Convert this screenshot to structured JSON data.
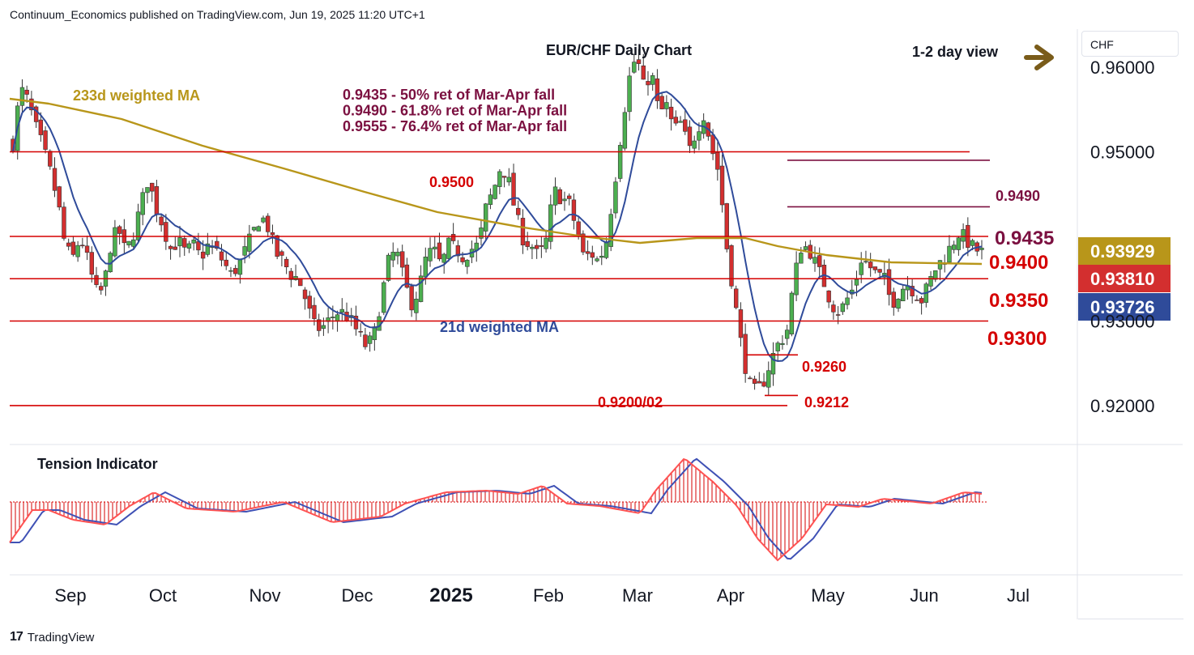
{
  "header": {
    "publisher": "Continuum_Economics published on TradingView.com, Jun 19, 2025 11:20 UTC+1"
  },
  "footer": {
    "brand": "TradingView"
  },
  "price_scale": {
    "unit": "CHF"
  },
  "colors": {
    "up": "#26a69a",
    "down": "#ef5350",
    "candle_up": "#4caf50",
    "candle_down": "#d32f2f",
    "wma233": "#b8961a",
    "wma21": "#2f4b9a",
    "level_red": "#d50000",
    "fib": "#7b1040",
    "arrow": "#7a5c1a",
    "badge_gold": "#b8961a",
    "badge_red": "#d32f2f",
    "badge_blue": "#2f4b9a"
  },
  "chart_data": [
    {
      "type": "candlestick",
      "title": "EUR/CHF Daily Chart",
      "view_label": "1-2 day view",
      "x_tick_labels": [
        "Sep",
        "Oct",
        "Nov",
        "Dec",
        "2025",
        "Feb",
        "Mar",
        "Apr",
        "May",
        "Jun",
        "Jul"
      ],
      "y_tick_labels": [
        "0.96000",
        "0.95000",
        "0.93000",
        "0.92000"
      ],
      "ylim": [
        0.9155,
        0.9645
      ],
      "horizontal_levels": [
        {
          "value": 0.95,
          "label": "0.9500"
        },
        {
          "value": 0.94,
          "label": "0.9400"
        },
        {
          "value": 0.935,
          "label": "0.9350"
        },
        {
          "value": 0.93,
          "label": "0.9300"
        },
        {
          "value": 0.92,
          "label": "0.9200/02"
        }
      ],
      "short_levels": [
        {
          "value": 0.949,
          "label": "0.9490"
        },
        {
          "value": 0.9435,
          "label": "0.9435"
        },
        {
          "value": 0.926,
          "label": "0.9260"
        },
        {
          "value": 0.9212,
          "label": "0.9212"
        }
      ],
      "annotations": [
        "0.9435 - 50% ret of Mar-Apr fall",
        "0.9490 - 61.8% ret of Mar-Apr fall",
        "0.9555 - 76.4% ret of Mar-Apr fall"
      ],
      "ma_labels": {
        "wma233": "233d weighted MA",
        "wma21": "21d weighted MA"
      },
      "last_values": {
        "wma233": "0.93929",
        "close": "0.93810",
        "wma21": "0.93726"
      },
      "close_path": [
        0.951,
        0.9575,
        0.956,
        0.953,
        0.9505,
        0.9475,
        0.944,
        0.9385,
        0.9375,
        0.94,
        0.937,
        0.9335,
        0.9335,
        0.939,
        0.941,
        0.938,
        0.9402,
        0.9436,
        0.9468,
        0.9435,
        0.9412,
        0.9385,
        0.9395,
        0.938,
        0.939,
        0.9375,
        0.939,
        0.9383,
        0.937,
        0.9355,
        0.9365,
        0.9385,
        0.9405,
        0.9425,
        0.941,
        0.938,
        0.937,
        0.9355,
        0.935,
        0.9325,
        0.9295,
        0.929,
        0.93,
        0.931,
        0.931,
        0.93,
        0.9285,
        0.927,
        0.928,
        0.9325,
        0.937,
        0.9385,
        0.935,
        0.932,
        0.9335,
        0.9375,
        0.9385,
        0.9365,
        0.939,
        0.9385,
        0.9375,
        0.9385,
        0.939,
        0.9435,
        0.9455,
        0.9485,
        0.9465,
        0.9425,
        0.9395,
        0.939,
        0.9375,
        0.9395,
        0.9455,
        0.9445,
        0.944,
        0.941,
        0.9375,
        0.938,
        0.937,
        0.9395,
        0.9455,
        0.9525,
        0.9585,
        0.9615,
        0.9575,
        0.9595,
        0.9545,
        0.9555,
        0.9525,
        0.9535,
        0.95,
        0.9525,
        0.9545,
        0.9505,
        0.9475,
        0.939,
        0.933,
        0.927,
        0.9225,
        0.9215,
        0.923,
        0.9255,
        0.9275,
        0.9285,
        0.935,
        0.939,
        0.9385,
        0.9365,
        0.9345,
        0.932,
        0.931,
        0.9325,
        0.934,
        0.9375,
        0.9365,
        0.9355,
        0.935,
        0.932,
        0.9335,
        0.9345,
        0.9335,
        0.9325,
        0.9345,
        0.9365,
        0.9375,
        0.939,
        0.9405,
        0.9395,
        0.9385,
        0.9381
      ]
    },
    {
      "type": "histogram",
      "title": "Tension Indicator"
    }
  ]
}
